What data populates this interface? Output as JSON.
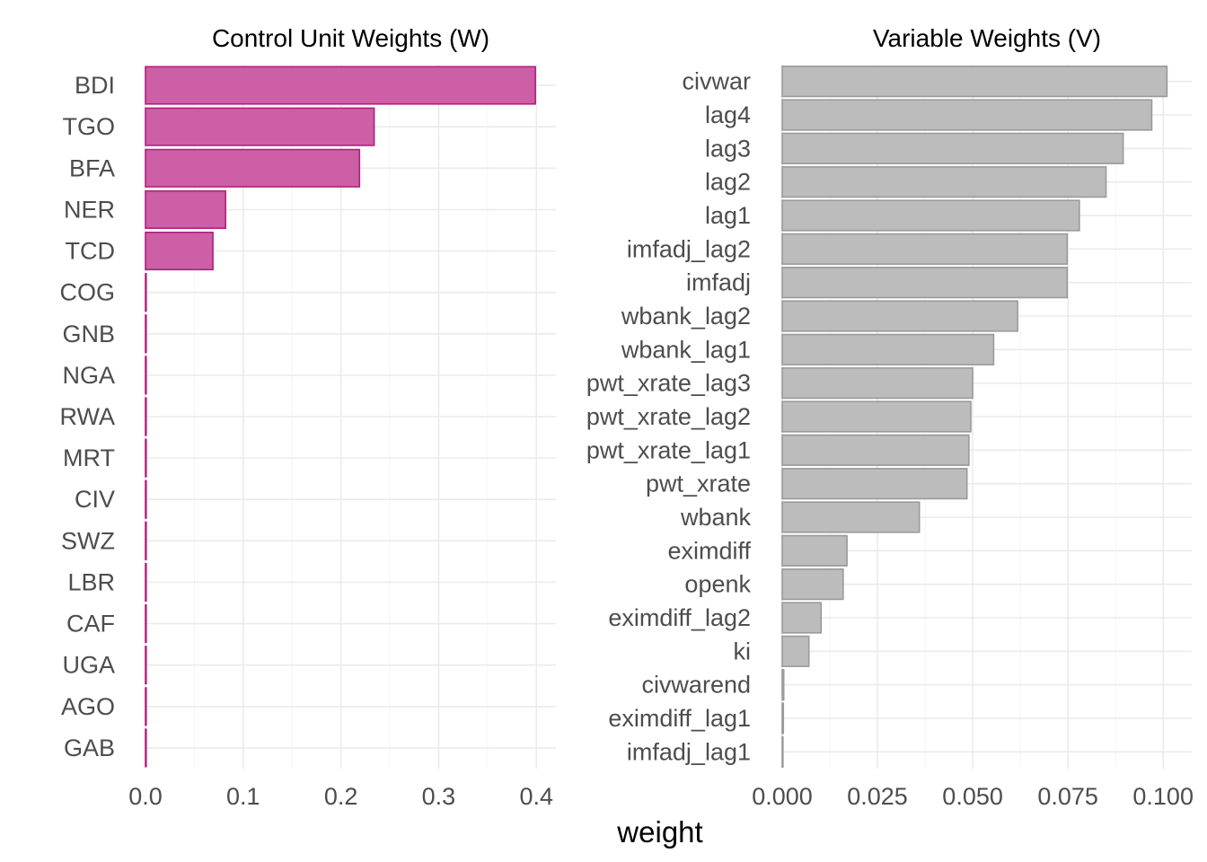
{
  "chart_data": [
    {
      "type": "bar",
      "orientation": "horizontal",
      "title": "Control Unit Weights (W)",
      "xlabel": "weight",
      "ylabel": "",
      "xlim": [
        0,
        0.42
      ],
      "ticks": [
        "0.0",
        "0.1",
        "0.2",
        "0.3",
        "0.4"
      ],
      "tick_values": [
        0,
        0.1,
        0.2,
        0.3,
        0.4
      ],
      "categories": [
        "BDI",
        "TGO",
        "BFA",
        "NER",
        "TCD",
        "COG",
        "GNB",
        "NGA",
        "RWA",
        "MRT",
        "CIV",
        "SWZ",
        "LBR",
        "CAF",
        "UGA",
        "AGO",
        "GAB"
      ],
      "values": [
        0.399,
        0.234,
        0.219,
        0.082,
        0.069,
        0,
        0,
        0,
        0,
        0,
        0,
        0,
        0,
        0,
        0,
        0,
        0
      ],
      "fill": "#cc5fa5",
      "stroke": "#b21f7f",
      "grid": true
    },
    {
      "type": "bar",
      "orientation": "horizontal",
      "title": "Variable Weights (V)",
      "xlabel": "weight",
      "ylabel": "",
      "xlim": [
        0,
        0.1075
      ],
      "ticks": [
        "0.000",
        "0.025",
        "0.050",
        "0.075",
        "0.100"
      ],
      "tick_values": [
        0,
        0.025,
        0.05,
        0.075,
        0.1
      ],
      "categories": [
        "civwar",
        "lag4",
        "lag3",
        "lag2",
        "lag1",
        "imfadj_lag2",
        "imfadj",
        "wbank_lag2",
        "wbank_lag1",
        "pwt_xrate_lag3",
        "pwt_xrate_lag2",
        "pwt_xrate_lag1",
        "pwt_xrate",
        "wbank",
        "eximdiff",
        "openk",
        "eximdiff_lag2",
        "ki",
        "civwarend",
        "eximdiff_lag1",
        "imfadj_lag1"
      ],
      "values": [
        0.101,
        0.097,
        0.0895,
        0.085,
        0.078,
        0.0748,
        0.0748,
        0.0618,
        0.0555,
        0.05,
        0.0495,
        0.049,
        0.0485,
        0.036,
        0.017,
        0.016,
        0.0102,
        0.007,
        0.0004,
        0.0003,
        0.0002
      ],
      "fill": "#bcbcbc",
      "stroke": "#9a9a9a",
      "grid": true
    }
  ],
  "shared_xlabel": "weight"
}
